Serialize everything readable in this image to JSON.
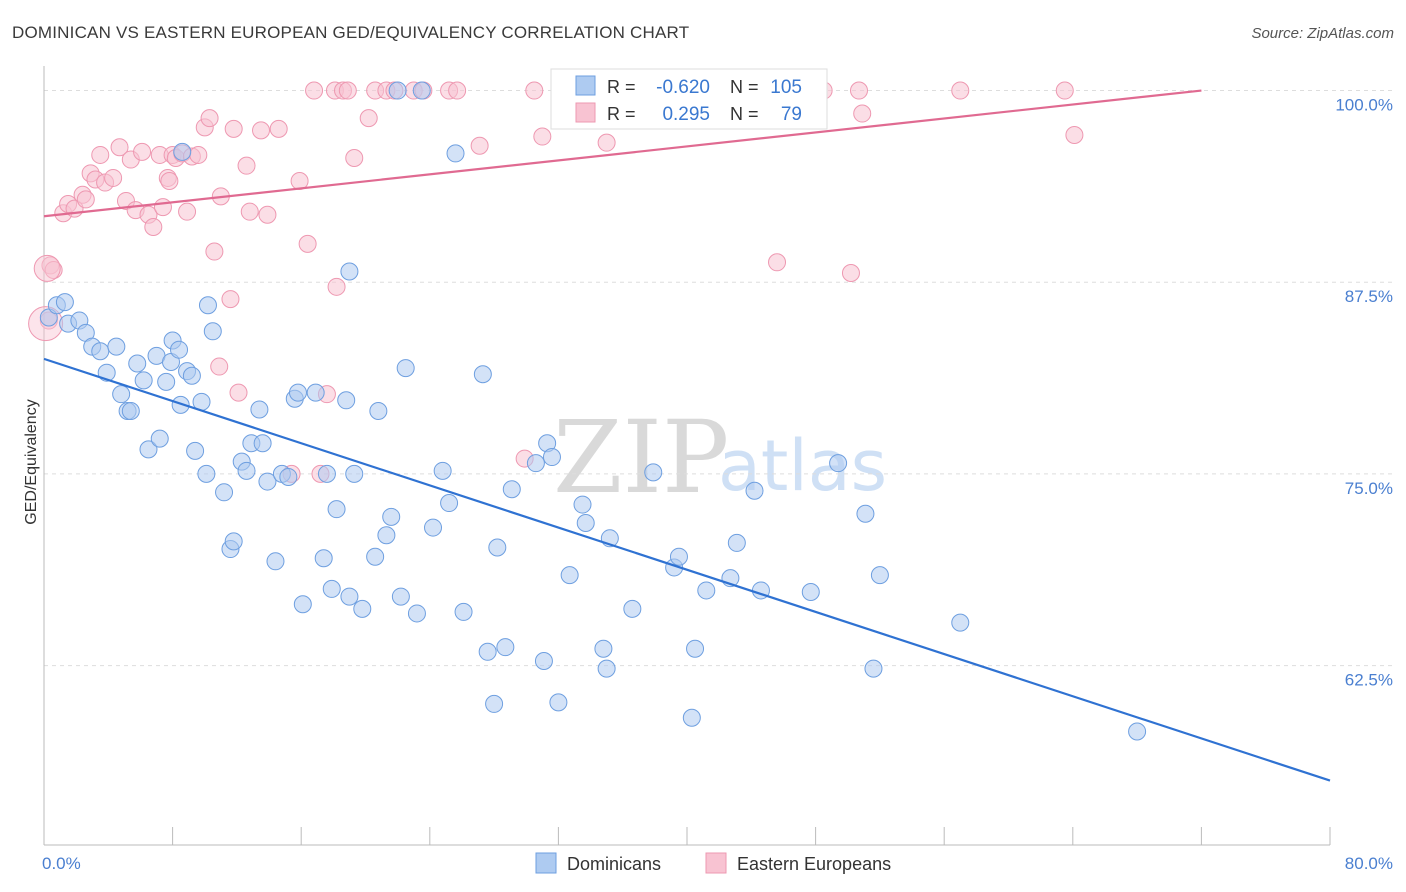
{
  "title": "DOMINICAN VS EASTERN EUROPEAN GED/EQUIVALENCY CORRELATION CHART",
  "source": "Source: ZipAtlas.com",
  "watermark": {
    "zip": "ZIP",
    "atlas": "atlas"
  },
  "chart_data": {
    "type": "scatter",
    "ylabel": "GED/Equivalency",
    "xlim": [
      0,
      80
    ],
    "ylim": [
      50.8,
      101.6
    ],
    "x_tick_labels": {
      "left": "0.0%",
      "right": "80.0%"
    },
    "y_ticks": [
      {
        "value": 100.0,
        "label": "100.0%"
      },
      {
        "value": 87.5,
        "label": "87.5%"
      },
      {
        "value": 75.0,
        "label": "75.0%"
      },
      {
        "value": 62.5,
        "label": "62.5%"
      }
    ],
    "grid": "horizontal-dashed",
    "legend": {
      "position": "bottom"
    },
    "colors": {
      "dominicans_fill": "#aecbf1",
      "dominicans_stroke": "#6e9fe0",
      "dominicans_line": "#2f72d2",
      "eastern_fill": "#f8c3d2",
      "eastern_stroke": "#ee98b1",
      "eastern_line": "#e06a91"
    },
    "stats": [
      {
        "r_label": "R =",
        "r": "-0.620",
        "n_label": "N =",
        "n": "105"
      },
      {
        "r_label": "R =",
        "r": "0.295",
        "n_label": "N =",
        "n": "79"
      }
    ],
    "series": [
      {
        "name": "Dominicans",
        "trend": {
          "x": [
            0,
            80
          ],
          "y": [
            82.5,
            55.0
          ]
        },
        "points": [
          [
            0.3,
            85.2
          ],
          [
            0.8,
            86.0
          ],
          [
            1.3,
            86.2
          ],
          [
            1.5,
            84.8
          ],
          [
            2.2,
            85.0
          ],
          [
            2.6,
            84.2
          ],
          [
            3.0,
            83.3
          ],
          [
            3.5,
            83.0
          ],
          [
            3.9,
            81.6
          ],
          [
            4.5,
            83.3
          ],
          [
            4.8,
            80.2
          ],
          [
            5.2,
            79.1
          ],
          [
            5.4,
            79.1
          ],
          [
            5.8,
            82.2
          ],
          [
            6.2,
            81.1
          ],
          [
            6.5,
            76.6
          ],
          [
            7.0,
            82.7
          ],
          [
            7.2,
            77.3
          ],
          [
            7.6,
            81.0
          ],
          [
            7.9,
            82.3
          ],
          [
            8.0,
            83.7
          ],
          [
            8.4,
            83.1
          ],
          [
            8.5,
            79.5
          ],
          [
            8.9,
            81.7
          ],
          [
            9.2,
            81.4
          ],
          [
            9.4,
            76.5
          ],
          [
            9.8,
            79.7
          ],
          [
            10.1,
            75.0
          ],
          [
            10.5,
            84.3
          ],
          [
            11.2,
            73.8
          ],
          [
            11.6,
            70.1
          ],
          [
            11.8,
            70.6
          ],
          [
            12.3,
            75.8
          ],
          [
            12.6,
            75.2
          ],
          [
            12.9,
            77.0
          ],
          [
            13.4,
            79.2
          ],
          [
            13.6,
            77.0
          ],
          [
            13.9,
            74.5
          ],
          [
            14.4,
            69.3
          ],
          [
            14.8,
            75.0
          ],
          [
            15.2,
            74.8
          ],
          [
            15.6,
            79.9
          ],
          [
            15.8,
            80.3
          ],
          [
            16.1,
            66.5
          ],
          [
            16.9,
            80.3
          ],
          [
            17.4,
            69.5
          ],
          [
            17.6,
            75.0
          ],
          [
            17.9,
            67.5
          ],
          [
            18.2,
            72.7
          ],
          [
            18.8,
            79.8
          ],
          [
            19.0,
            67.0
          ],
          [
            19.3,
            75.0
          ],
          [
            19.8,
            66.2
          ],
          [
            20.6,
            69.6
          ],
          [
            20.8,
            79.1
          ],
          [
            21.3,
            71.0
          ],
          [
            21.6,
            72.2
          ],
          [
            22.0,
            100.0
          ],
          [
            22.2,
            67.0
          ],
          [
            22.5,
            81.9
          ],
          [
            23.2,
            65.9
          ],
          [
            23.5,
            100.0
          ],
          [
            24.2,
            71.5
          ],
          [
            24.8,
            75.2
          ],
          [
            25.2,
            73.1
          ],
          [
            25.6,
            95.9
          ],
          [
            26.1,
            66.0
          ],
          [
            27.3,
            81.5
          ],
          [
            27.6,
            63.4
          ],
          [
            28.0,
            60.0
          ],
          [
            28.7,
            63.7
          ],
          [
            29.1,
            74.0
          ],
          [
            30.6,
            75.7
          ],
          [
            31.1,
            62.8
          ],
          [
            31.3,
            77.0
          ],
          [
            31.6,
            76.1
          ],
          [
            32.0,
            60.1
          ],
          [
            32.7,
            68.4
          ],
          [
            33.5,
            73.0
          ],
          [
            33.7,
            71.8
          ],
          [
            34.8,
            63.6
          ],
          [
            35.0,
            62.3
          ],
          [
            35.2,
            70.8
          ],
          [
            37.9,
            75.1
          ],
          [
            39.2,
            68.9
          ],
          [
            39.5,
            69.6
          ],
          [
            40.3,
            59.1
          ],
          [
            40.5,
            63.6
          ],
          [
            41.2,
            67.4
          ],
          [
            42.7,
            68.2
          ],
          [
            43.1,
            70.5
          ],
          [
            44.2,
            73.9
          ],
          [
            44.6,
            67.4
          ],
          [
            47.7,
            67.3
          ],
          [
            49.4,
            75.7
          ],
          [
            51.1,
            72.4
          ],
          [
            51.6,
            62.3
          ],
          [
            52.0,
            68.4
          ],
          [
            57.0,
            65.3
          ],
          [
            68.0,
            58.2
          ],
          [
            19.0,
            88.2
          ],
          [
            8.6,
            96.0
          ],
          [
            10.2,
            86.0
          ],
          [
            28.2,
            70.2
          ],
          [
            36.6,
            66.2
          ]
        ]
      },
      {
        "name": "Eastern Europeans",
        "trend": {
          "x": [
            0,
            72
          ],
          "y": [
            91.8,
            100.0
          ]
        },
        "points": [
          [
            0.4,
            88.6
          ],
          [
            0.6,
            88.3
          ],
          [
            0.3,
            85.0
          ],
          [
            1.2,
            92.0
          ],
          [
            1.5,
            92.6
          ],
          [
            1.9,
            92.3
          ],
          [
            2.4,
            93.2
          ],
          [
            2.6,
            92.9
          ],
          [
            2.9,
            94.6
          ],
          [
            3.2,
            94.2
          ],
          [
            3.5,
            95.8
          ],
          [
            3.8,
            94.0
          ],
          [
            4.3,
            94.3
          ],
          [
            4.7,
            96.3
          ],
          [
            5.1,
            92.8
          ],
          [
            5.4,
            95.5
          ],
          [
            5.7,
            92.2
          ],
          [
            6.1,
            96.0
          ],
          [
            6.5,
            91.9
          ],
          [
            6.8,
            91.1
          ],
          [
            7.2,
            95.8
          ],
          [
            7.4,
            92.4
          ],
          [
            7.7,
            94.3
          ],
          [
            8.0,
            95.8
          ],
          [
            8.2,
            95.6
          ],
          [
            8.6,
            95.9
          ],
          [
            8.9,
            92.1
          ],
          [
            9.2,
            95.7
          ],
          [
            9.6,
            95.8
          ],
          [
            10.0,
            97.6
          ],
          [
            10.3,
            98.2
          ],
          [
            10.6,
            89.5
          ],
          [
            11.0,
            93.1
          ],
          [
            11.6,
            86.4
          ],
          [
            11.8,
            97.5
          ],
          [
            12.1,
            80.3
          ],
          [
            12.6,
            95.1
          ],
          [
            12.8,
            92.1
          ],
          [
            13.5,
            97.4
          ],
          [
            13.9,
            91.9
          ],
          [
            14.6,
            97.5
          ],
          [
            15.4,
            75.0
          ],
          [
            15.9,
            94.1
          ],
          [
            16.4,
            90.0
          ],
          [
            16.8,
            100.0
          ],
          [
            17.2,
            75.0
          ],
          [
            17.6,
            80.2
          ],
          [
            18.1,
            100.0
          ],
          [
            18.2,
            87.2
          ],
          [
            18.6,
            100.0
          ],
          [
            18.9,
            100.0
          ],
          [
            19.3,
            95.6
          ],
          [
            20.2,
            98.2
          ],
          [
            20.6,
            100.0
          ],
          [
            21.3,
            100.0
          ],
          [
            21.8,
            100.0
          ],
          [
            23.0,
            100.0
          ],
          [
            23.6,
            100.0
          ],
          [
            25.2,
            100.0
          ],
          [
            25.7,
            100.0
          ],
          [
            27.1,
            96.4
          ],
          [
            29.9,
            76.0
          ],
          [
            30.5,
            100.0
          ],
          [
            31.0,
            97.0
          ],
          [
            33.3,
            100.0
          ],
          [
            34.3,
            100.0
          ],
          [
            35.0,
            96.6
          ],
          [
            38.0,
            100.0
          ],
          [
            42.0,
            100.0
          ],
          [
            45.6,
            88.8
          ],
          [
            48.5,
            100.0
          ],
          [
            50.2,
            88.1
          ],
          [
            50.7,
            100.0
          ],
          [
            50.9,
            98.5
          ],
          [
            57.0,
            100.0
          ],
          [
            63.5,
            100.0
          ],
          [
            64.1,
            97.1
          ],
          [
            10.9,
            82.0
          ],
          [
            7.8,
            94.1
          ]
        ]
      }
    ]
  }
}
